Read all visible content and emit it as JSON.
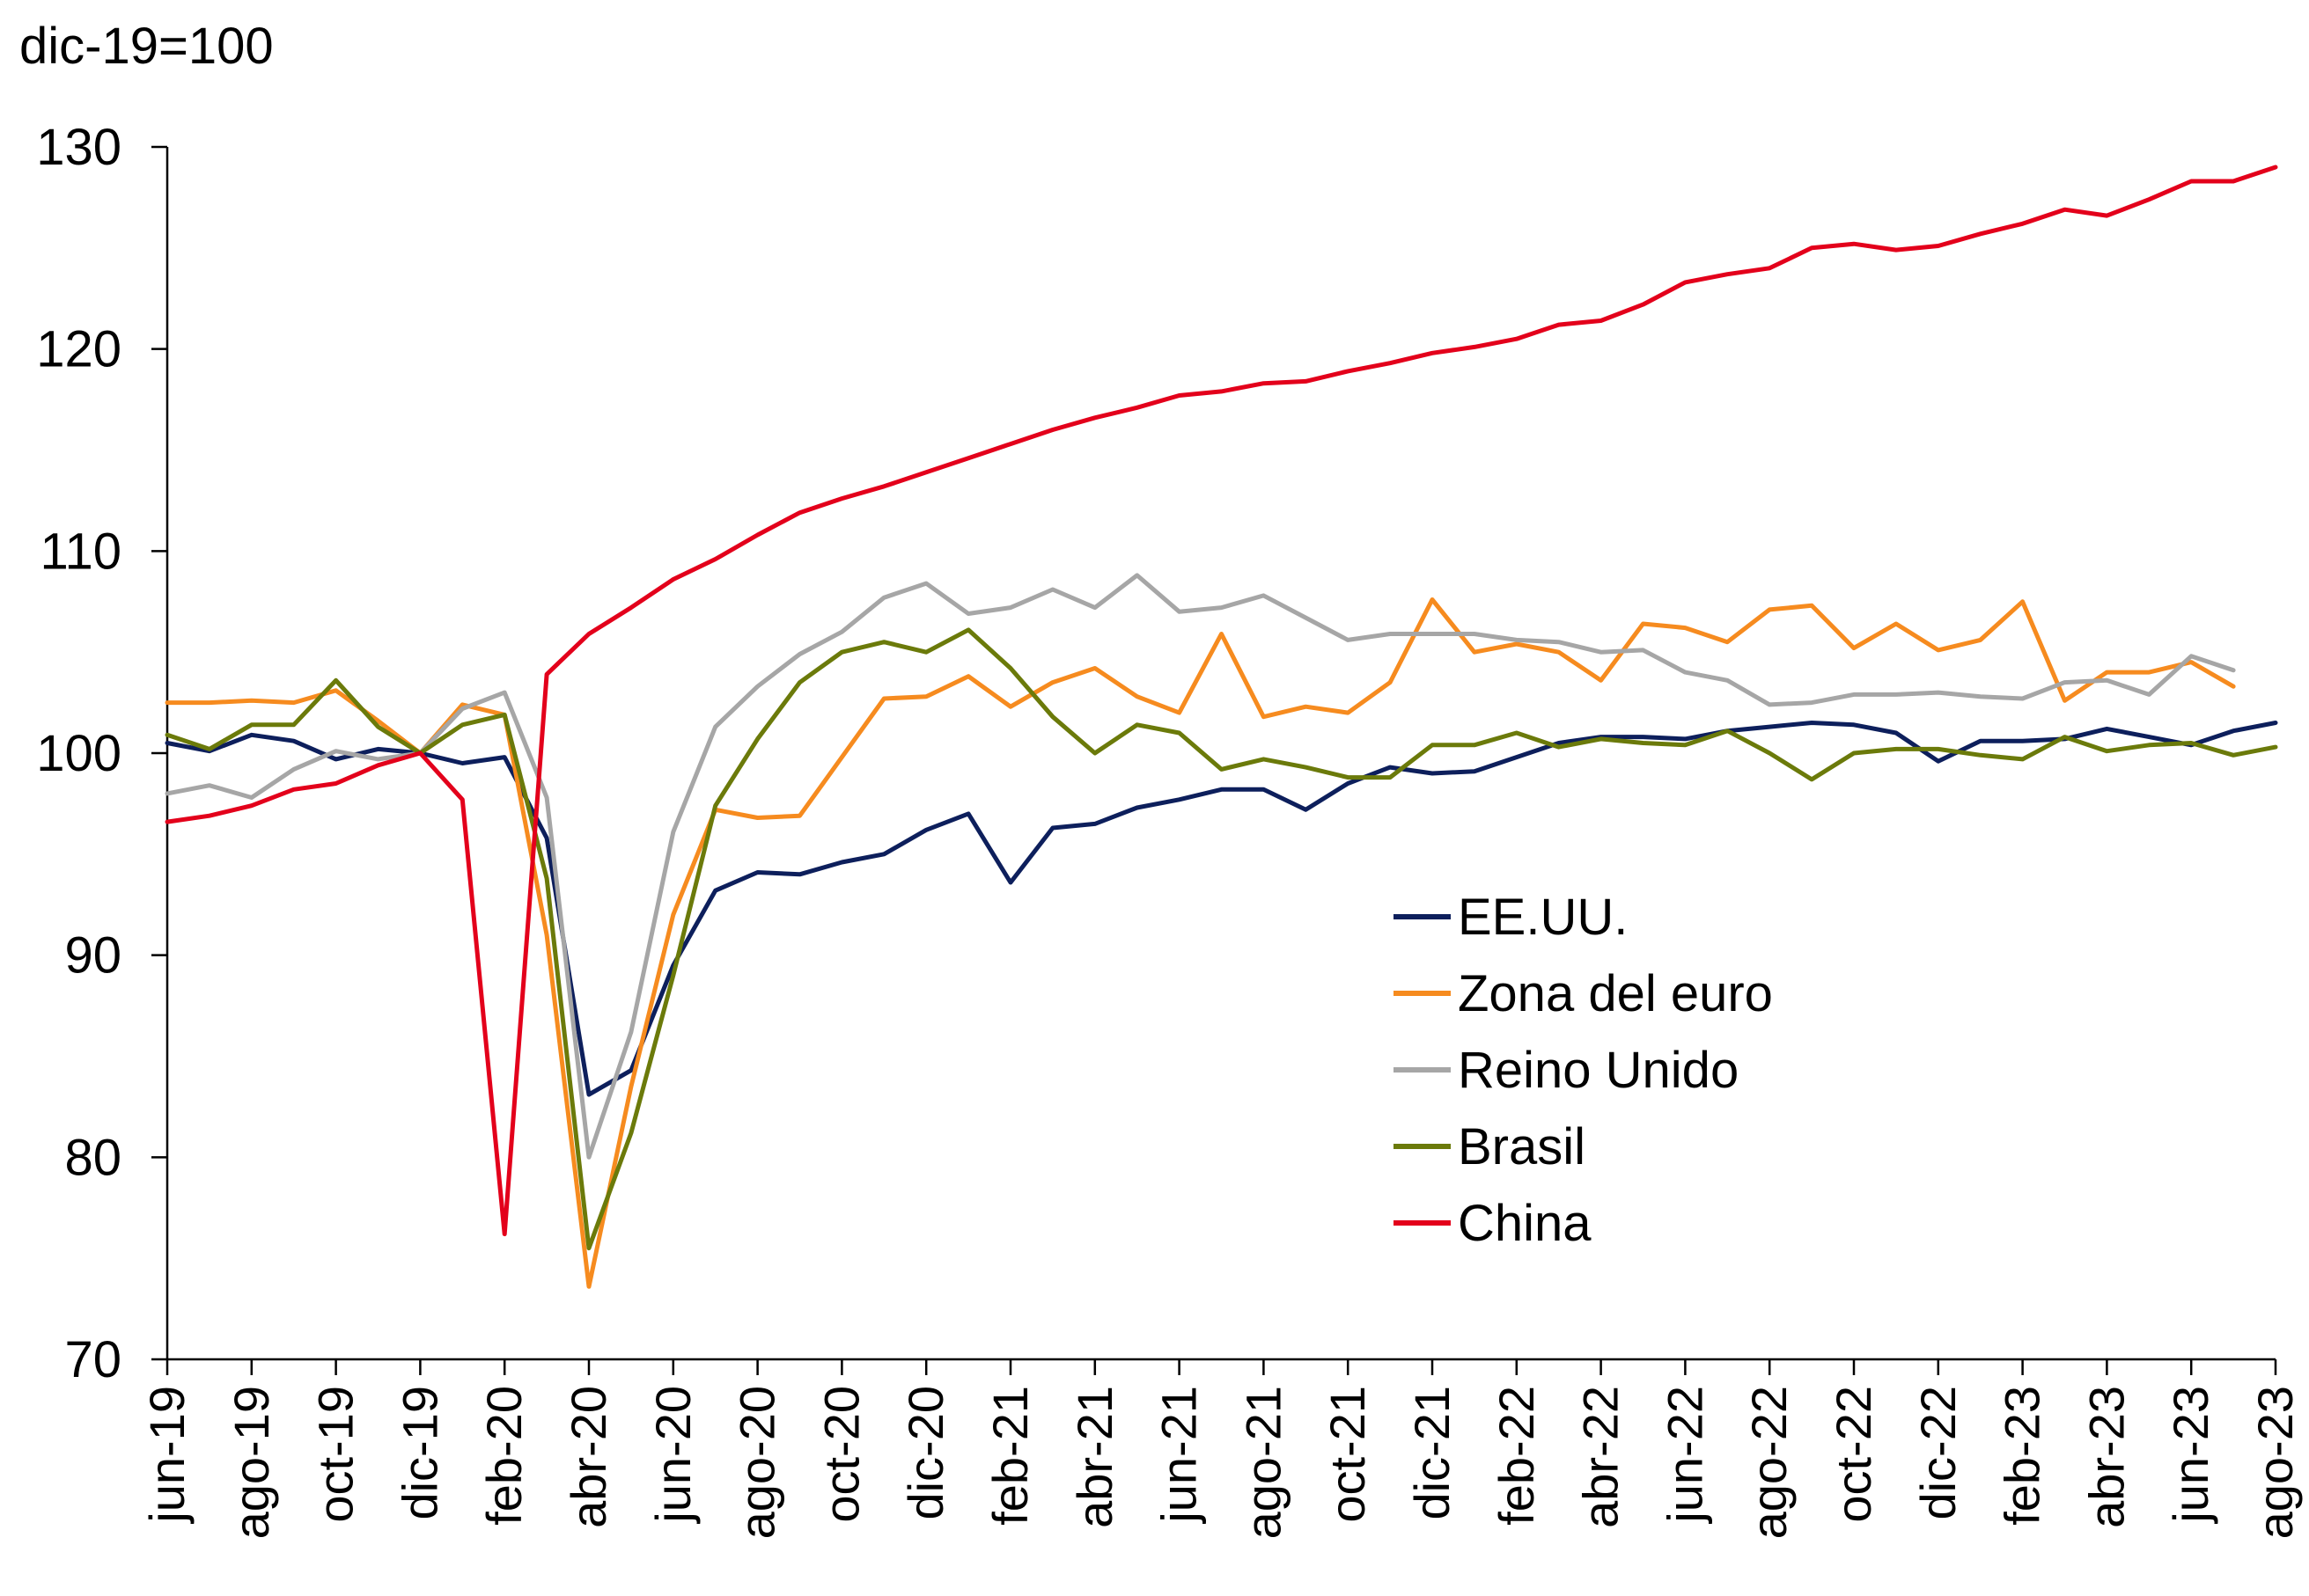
{
  "chart_data": {
    "type": "line",
    "unit_label": "dic-19=100",
    "ylim": [
      70,
      130
    ],
    "yticks": [
      70,
      80,
      90,
      100,
      110,
      120,
      130
    ],
    "ytick_labels": [
      "70",
      "80",
      "90",
      "100",
      "110",
      "120",
      "130"
    ],
    "x": [
      "jun-19",
      "jul-19",
      "ago-19",
      "sep-19",
      "oct-19",
      "nov-19",
      "dic-19",
      "ene-20",
      "feb-20",
      "mar-20",
      "abr-20",
      "may-20",
      "jun-20",
      "jul-20",
      "ago-20",
      "sep-20",
      "oct-20",
      "nov-20",
      "dic-20",
      "ene-21",
      "feb-21",
      "mar-21",
      "abr-21",
      "may-21",
      "jun-21",
      "jul-21",
      "ago-21",
      "sep-21",
      "oct-21",
      "nov-21",
      "dic-21",
      "ene-22",
      "feb-22",
      "mar-22",
      "abr-22",
      "may-22",
      "jun-22",
      "jul-22",
      "ago-22",
      "sep-22",
      "oct-22",
      "nov-22",
      "dic-22",
      "ene-23",
      "feb-23",
      "mar-23",
      "abr-23",
      "may-23",
      "jun-23",
      "jul-23",
      "ago-23"
    ],
    "xtick_labels": [
      "jun-19",
      "ago-19",
      "oct-19",
      "dic-19",
      "feb-20",
      "abr-20",
      "jun-20",
      "ago-20",
      "oct-20",
      "dic-20",
      "feb-21",
      "abr-21",
      "jun-21",
      "ago-21",
      "oct-21",
      "dic-21",
      "feb-22",
      "abr-22",
      "jun-22",
      "ago-22",
      "oct-22",
      "dic-22",
      "feb-23",
      "abr-23",
      "jun-23",
      "ago-23"
    ],
    "grid": false,
    "legend_position": "center-right",
    "series": [
      {
        "name": "EE.UU.",
        "color": "#0d1f5c",
        "values": [
          100.5,
          100.1,
          100.9,
          100.6,
          99.7,
          100.2,
          100.0,
          99.5,
          99.8,
          95.8,
          83.1,
          84.3,
          89.5,
          93.2,
          94.1,
          94.0,
          94.6,
          95.0,
          96.2,
          97.0,
          93.6,
          96.3,
          96.5,
          97.3,
          97.7,
          98.2,
          98.2,
          97.2,
          98.5,
          99.3,
          99.0,
          99.1,
          99.8,
          100.5,
          100.8,
          100.8,
          100.7,
          101.1,
          101.3,
          101.5,
          101.4,
          101.0,
          99.6,
          100.6,
          100.6,
          100.7,
          101.2,
          100.8,
          100.4,
          101.1,
          101.5
        ]
      },
      {
        "name": "Zona del euro",
        "color": "#f68b1f",
        "values": [
          102.5,
          102.5,
          102.6,
          102.5,
          103.1,
          101.6,
          100.0,
          102.4,
          101.9,
          91.0,
          73.6,
          83.5,
          92.0,
          97.2,
          96.8,
          96.9,
          99.8,
          102.7,
          102.8,
          103.8,
          102.3,
          103.5,
          104.2,
          102.8,
          102.0,
          105.9,
          101.8,
          102.3,
          102.0,
          103.5,
          107.6,
          105.0,
          105.4,
          105.0,
          103.6,
          106.4,
          106.2,
          105.5,
          107.1,
          107.3,
          105.2,
          106.4,
          105.1,
          105.6,
          107.5,
          102.6,
          104.0,
          104.0,
          104.5,
          103.3,
          null
        ]
      },
      {
        "name": "Reino Unido",
        "color": "#a6a6a6",
        "values": [
          98.0,
          98.4,
          97.8,
          99.2,
          100.1,
          99.7,
          100.0,
          102.2,
          103.0,
          97.8,
          80.0,
          86.2,
          96.1,
          101.3,
          103.3,
          104.9,
          106.0,
          107.7,
          108.4,
          106.9,
          107.2,
          108.1,
          107.2,
          108.8,
          107.0,
          107.2,
          107.8,
          106.7,
          105.6,
          105.9,
          105.9,
          105.9,
          105.6,
          105.5,
          105.0,
          105.1,
          104.0,
          103.6,
          102.4,
          102.5,
          102.9,
          102.9,
          103.0,
          102.8,
          102.7,
          103.5,
          103.6,
          102.9,
          104.8,
          104.1,
          null
        ]
      },
      {
        "name": "Brasil",
        "color": "#6b7a0a",
        "values": [
          100.9,
          100.2,
          101.4,
          101.4,
          103.6,
          101.3,
          100.0,
          101.4,
          101.9,
          93.8,
          75.5,
          81.2,
          89.0,
          97.4,
          100.7,
          103.5,
          105.0,
          105.5,
          105.0,
          106.1,
          104.2,
          101.8,
          100.0,
          101.4,
          101.0,
          99.2,
          99.7,
          99.3,
          98.8,
          98.8,
          100.4,
          100.4,
          101.0,
          100.3,
          100.7,
          100.5,
          100.4,
          101.1,
          100.0,
          98.7,
          100.0,
          100.2,
          100.2,
          99.9,
          99.7,
          100.8,
          100.1,
          100.4,
          100.5,
          99.9,
          100.3
        ]
      },
      {
        "name": "China",
        "color": "#e3001b",
        "values": [
          96.6,
          96.9,
          97.4,
          98.2,
          98.5,
          99.4,
          100.0,
          97.7,
          76.2,
          103.9,
          105.9,
          107.2,
          108.6,
          109.6,
          110.8,
          111.9,
          112.6,
          113.2,
          113.9,
          114.6,
          115.3,
          116.0,
          116.6,
          117.1,
          117.7,
          117.9,
          118.3,
          118.4,
          118.9,
          119.3,
          119.8,
          120.1,
          120.5,
          121.2,
          121.4,
          122.2,
          123.3,
          123.7,
          124.0,
          125.0,
          125.2,
          124.9,
          125.1,
          125.7,
          126.2,
          126.9,
          126.6,
          127.4,
          128.3,
          128.3,
          129.0
        ]
      }
    ]
  }
}
